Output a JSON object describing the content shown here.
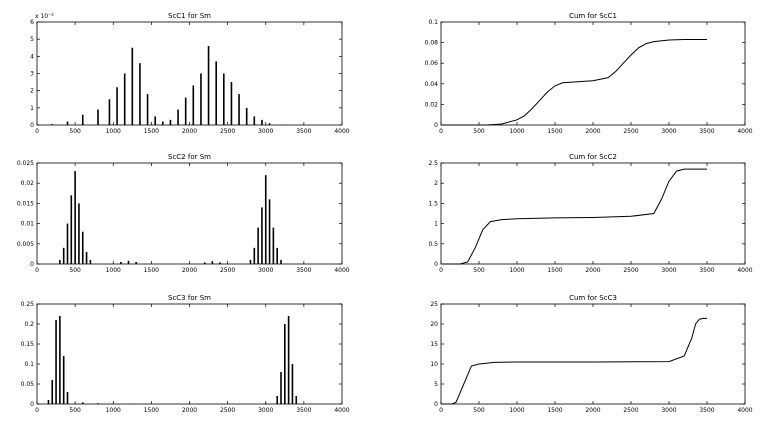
{
  "chart_data": [
    {
      "type": "bar",
      "title": "ScC1 for Sm",
      "exponent_label": "x 10⁻³",
      "xlabel": "",
      "ylabel": "",
      "xlim": [
        0,
        4000
      ],
      "ylim": [
        0,
        6
      ],
      "xticks": [
        0,
        500,
        1000,
        1500,
        2000,
        2500,
        3000,
        3500,
        4000
      ],
      "yticks": [
        0,
        1,
        2,
        3,
        4,
        5,
        6
      ],
      "xtick_labels": [
        "0",
        "500",
        "1000",
        "1500",
        "2000",
        "2500",
        "3000",
        "3500",
        "4000"
      ],
      "ytick_labels": [
        "0",
        "1",
        "2",
        "3",
        "4",
        "5",
        "6"
      ],
      "x": [
        200,
        400,
        600,
        800,
        950,
        1050,
        1150,
        1250,
        1350,
        1450,
        1550,
        1650,
        1750,
        1850,
        1950,
        2050,
        2150,
        2250,
        2350,
        2450,
        2550,
        2650,
        2750,
        2850,
        2950,
        3050,
        3200
      ],
      "values": [
        0.05,
        0.2,
        0.6,
        0.9,
        1.5,
        2.2,
        3.0,
        4.5,
        3.6,
        1.8,
        0.5,
        0.2,
        0.3,
        0.9,
        1.6,
        2.3,
        3.0,
        4.6,
        3.7,
        3.0,
        2.5,
        1.8,
        1.0,
        0.5,
        0.3,
        0.1,
        0.02
      ]
    },
    {
      "type": "line",
      "title": "Cum for ScC1",
      "xlabel": "",
      "ylabel": "",
      "xlim": [
        0,
        4000
      ],
      "ylim": [
        0,
        0.1
      ],
      "xticks": [
        0,
        500,
        1000,
        1500,
        2000,
        2500,
        3000,
        3500,
        4000
      ],
      "yticks": [
        0,
        0.02,
        0.04,
        0.06,
        0.08,
        0.1
      ],
      "xtick_labels": [
        "0",
        "500",
        "1000",
        "1500",
        "2000",
        "2500",
        "3000",
        "3500",
        "4000"
      ],
      "ytick_labels": [
        "0",
        "0.02",
        "0.04",
        "0.06",
        "0.08",
        "0.1"
      ],
      "x": [
        0,
        300,
        600,
        800,
        1000,
        1100,
        1200,
        1300,
        1400,
        1500,
        1600,
        1800,
        2000,
        2200,
        2300,
        2400,
        2500,
        2600,
        2700,
        2800,
        3000,
        3200,
        3500
      ],
      "y": [
        0.0,
        0.0,
        0.0,
        0.001,
        0.005,
        0.009,
        0.016,
        0.024,
        0.032,
        0.038,
        0.041,
        0.042,
        0.043,
        0.046,
        0.052,
        0.06,
        0.068,
        0.075,
        0.079,
        0.081,
        0.0825,
        0.083,
        0.083
      ]
    },
    {
      "type": "bar",
      "title": "ScC2 for Sm",
      "xlabel": "",
      "ylabel": "",
      "xlim": [
        0,
        4000
      ],
      "ylim": [
        0,
        0.025
      ],
      "xticks": [
        0,
        500,
        1000,
        1500,
        2000,
        2500,
        3000,
        3500,
        4000
      ],
      "yticks": [
        0,
        0.005,
        0.01,
        0.015,
        0.02,
        0.025
      ],
      "xtick_labels": [
        "0",
        "500",
        "1000",
        "1500",
        "2000",
        "2500",
        "3000",
        "3500",
        "4000"
      ],
      "ytick_labels": [
        "0",
        "0.005",
        "0.01",
        "0.015",
        "0.02",
        "0.025"
      ],
      "x": [
        300,
        350,
        400,
        450,
        500,
        550,
        600,
        650,
        700,
        1100,
        1200,
        1300,
        2200,
        2300,
        2400,
        2800,
        2850,
        2900,
        2950,
        3000,
        3050,
        3100,
        3150,
        3200
      ],
      "values": [
        0.001,
        0.004,
        0.01,
        0.017,
        0.023,
        0.015,
        0.008,
        0.003,
        0.001,
        0.0005,
        0.0008,
        0.0005,
        0.0004,
        0.0007,
        0.0004,
        0.001,
        0.004,
        0.009,
        0.014,
        0.022,
        0.016,
        0.009,
        0.004,
        0.001
      ]
    },
    {
      "type": "line",
      "title": "Cum for ScC2",
      "xlabel": "",
      "ylabel": "",
      "xlim": [
        0,
        4000
      ],
      "ylim": [
        0,
        2.5
      ],
      "xticks": [
        0,
        500,
        1000,
        1500,
        2000,
        2500,
        3000,
        3500,
        4000
      ],
      "yticks": [
        0,
        0.5,
        1,
        1.5,
        2,
        2.5
      ],
      "xtick_labels": [
        "0",
        "500",
        "1000",
        "1500",
        "2000",
        "2500",
        "3000",
        "3500",
        "4000"
      ],
      "ytick_labels": [
        "0",
        "0.5",
        "1",
        "1.5",
        "2",
        "2.5"
      ],
      "x": [
        0,
        250,
        350,
        450,
        550,
        650,
        800,
        1000,
        1500,
        2000,
        2500,
        2800,
        2900,
        3000,
        3100,
        3200,
        3500
      ],
      "y": [
        0.0,
        0.0,
        0.05,
        0.4,
        0.85,
        1.05,
        1.1,
        1.12,
        1.14,
        1.15,
        1.18,
        1.25,
        1.6,
        2.05,
        2.3,
        2.35,
        2.35
      ]
    },
    {
      "type": "bar",
      "title": "ScC3 for Sm",
      "xlabel": "",
      "ylabel": "",
      "xlim": [
        0,
        4000
      ],
      "ylim": [
        0,
        0.25
      ],
      "xticks": [
        0,
        500,
        1000,
        1500,
        2000,
        2500,
        3000,
        3500,
        4000
      ],
      "yticks": [
        0,
        0.05,
        0.1,
        0.15,
        0.2,
        0.25
      ],
      "xtick_labels": [
        "0",
        "500",
        "1000",
        "1500",
        "2000",
        "2500",
        "3000",
        "3500",
        "4000"
      ],
      "ytick_labels": [
        "0",
        "0.05",
        "0.1",
        "0.15",
        "0.2",
        "0.25"
      ],
      "x": [
        150,
        200,
        250,
        300,
        350,
        400,
        600,
        800,
        1200,
        2000,
        3000,
        3150,
        3200,
        3250,
        3300,
        3350,
        3400
      ],
      "values": [
        0.01,
        0.06,
        0.21,
        0.22,
        0.12,
        0.03,
        0.004,
        0.002,
        0.001,
        0.0005,
        0.002,
        0.02,
        0.08,
        0.2,
        0.22,
        0.1,
        0.02
      ]
    },
    {
      "type": "line",
      "title": "Cum for ScC3",
      "xlabel": "",
      "ylabel": "",
      "xlim": [
        0,
        4000
      ],
      "ylim": [
        0,
        25
      ],
      "xticks": [
        0,
        500,
        1000,
        1500,
        2000,
        2500,
        3000,
        3500,
        4000
      ],
      "yticks": [
        0,
        5,
        10,
        15,
        20,
        25
      ],
      "xtick_labels": [
        "0",
        "500",
        "1000",
        "1500",
        "2000",
        "2500",
        "3000",
        "3500",
        "4000"
      ],
      "ytick_labels": [
        "0",
        "5",
        "10",
        "15",
        "20",
        "25"
      ],
      "x": [
        0,
        150,
        200,
        300,
        400,
        500,
        700,
        1000,
        2000,
        3000,
        3200,
        3300,
        3350,
        3400,
        3450,
        3500
      ],
      "y": [
        0.0,
        0.0,
        0.5,
        5.0,
        9.5,
        10.0,
        10.4,
        10.5,
        10.5,
        10.6,
        12.0,
        16.5,
        20.0,
        21.2,
        21.4,
        21.4
      ]
    }
  ]
}
